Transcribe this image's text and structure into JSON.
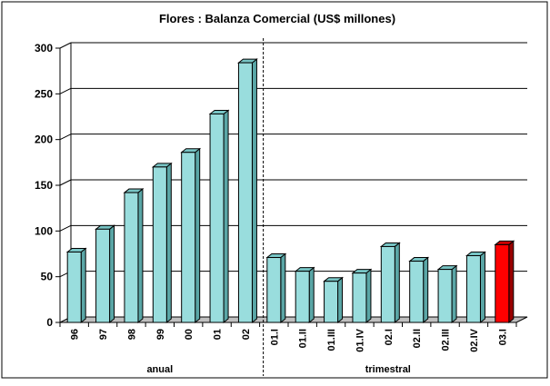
{
  "chart_data": {
    "type": "bar",
    "title": "Flores :  Balanza Comercial (US$ millones)",
    "categories": [
      "96",
      "97",
      "98",
      "99",
      "00",
      "01",
      "02",
      "01.I",
      "01.II",
      "01.III",
      "01.IV",
      "02.I",
      "02.II",
      "02.III",
      "02.IV",
      "03.I"
    ],
    "values": [
      77,
      102,
      142,
      170,
      186,
      228,
      284,
      71,
      56,
      45,
      54,
      83,
      67,
      58,
      73,
      85
    ],
    "groups": [
      {
        "label": "anual",
        "categories": [
          "96",
          "97",
          "98",
          "99",
          "00",
          "01",
          "02"
        ]
      },
      {
        "label": "trimestral",
        "categories": [
          "01.I",
          "01.II",
          "01.III",
          "01.IV",
          "02.I",
          "02.II",
          "02.III",
          "02.IV",
          "03.I"
        ]
      }
    ],
    "yticks": [
      0,
      50,
      100,
      150,
      200,
      250,
      300
    ],
    "ylim": [
      0,
      300
    ],
    "grid": true,
    "colors": {
      "bar": "#99DDDD",
      "highlight": "#FF0000",
      "highlight_category": "03.I"
    }
  }
}
